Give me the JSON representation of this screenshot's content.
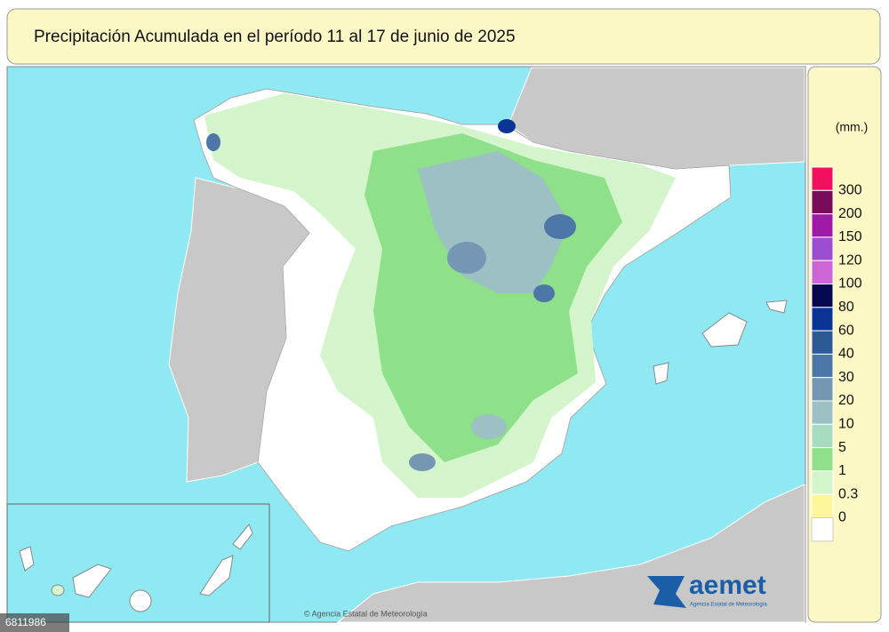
{
  "header": {
    "title": "Precipitación Acumulada en el período 11 al 17 de junio de 2025"
  },
  "legend": {
    "unit": "(mm.)",
    "items": [
      {
        "value": 300,
        "color": "#f0105e"
      },
      {
        "value": 200,
        "color": "#7a0a5a"
      },
      {
        "value": 150,
        "color": "#a01aa8"
      },
      {
        "value": 120,
        "color": "#9b4fd0"
      },
      {
        "value": 100,
        "color": "#cc66d6"
      },
      {
        "value": 80,
        "color": "#06084f"
      },
      {
        "value": 60,
        "color": "#0a3596"
      },
      {
        "value": 40,
        "color": "#2c5a96"
      },
      {
        "value": 30,
        "color": "#4c77a6"
      },
      {
        "value": 20,
        "color": "#7597b3"
      },
      {
        "value": 10,
        "color": "#9cc0c4"
      },
      {
        "value": 5,
        "color": "#a8dcc0"
      },
      {
        "value": 1,
        "color": "#8ee08a"
      },
      {
        "value": 0.3,
        "color": "#d4f5cc"
      },
      {
        "value": 0,
        "color": "#fff59a"
      }
    ],
    "base_color": "#ffffff"
  },
  "logo": {
    "name": "aemet",
    "subtitle": "Agencia Estatal de Meteorología"
  },
  "credit": "© Agencia Estatal de Meteorología",
  "watermark": "6811986"
}
